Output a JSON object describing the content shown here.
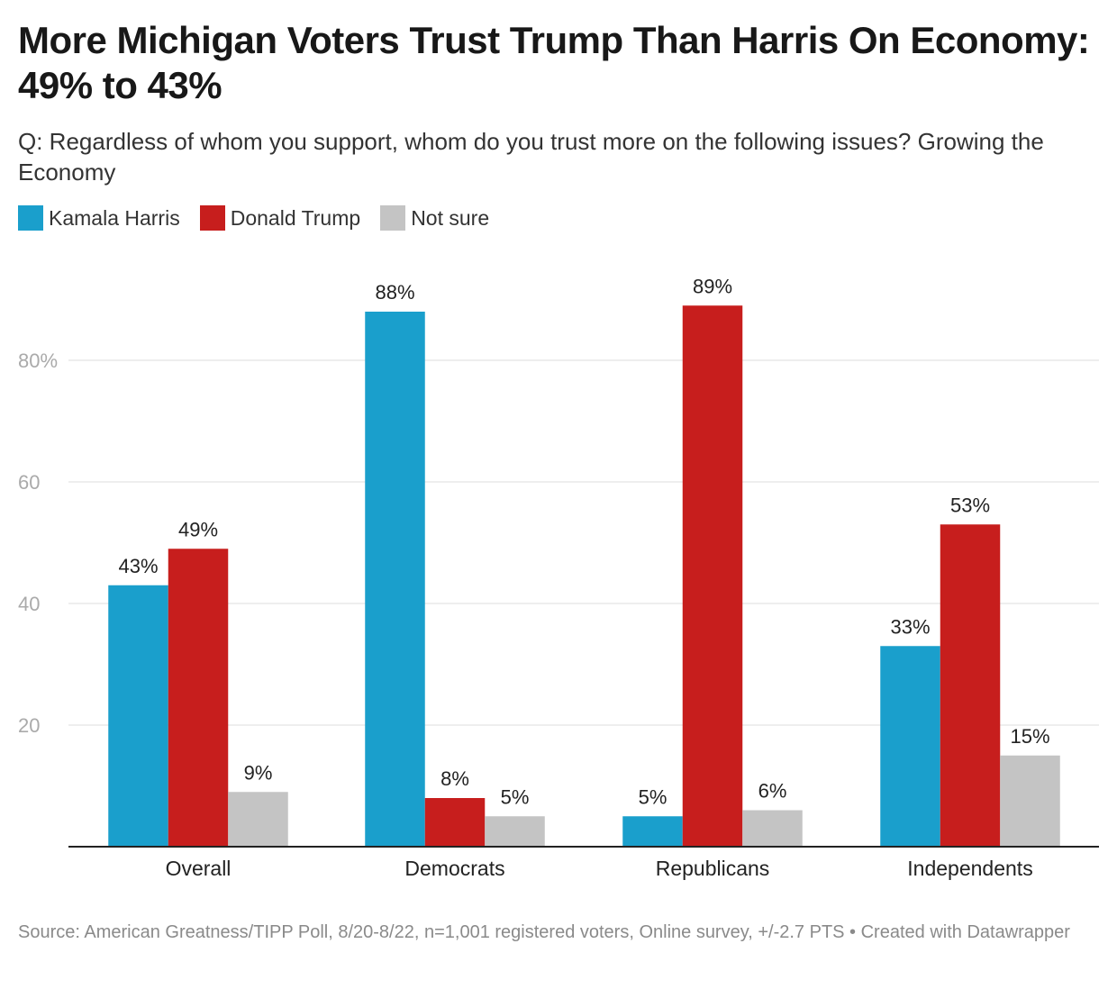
{
  "header": {
    "title": "More Michigan Voters Trust Trump Than Harris On Economy: 49% to 43%",
    "subtitle": "Q: Regardless of whom you support, whom do you trust more on the following issues? Growing the Economy"
  },
  "legend": [
    {
      "label": "Kamala Harris",
      "color": "#1a9fcc"
    },
    {
      "label": "Donald Trump",
      "color": "#c71e1d"
    },
    {
      "label": "Not sure",
      "color": "#c4c4c4"
    }
  ],
  "footer": {
    "source": "Source: American Greatness/TIPP Poll, 8/20-8/22, n=1,001 registered voters, Online survey, +/-2.7 PTS • Created with Datawrapper"
  },
  "chart_data": {
    "type": "bar",
    "categories": [
      "Overall",
      "Democrats",
      "Republicans",
      "Independents"
    ],
    "series": [
      {
        "name": "Kamala Harris",
        "color": "#1a9fcc",
        "values": [
          43,
          88,
          5,
          33
        ]
      },
      {
        "name": "Donald Trump",
        "color": "#c71e1d",
        "values": [
          49,
          8,
          89,
          53
        ]
      },
      {
        "name": "Not sure",
        "color": "#c4c4c4",
        "values": [
          9,
          5,
          6,
          15
        ]
      }
    ],
    "value_labels": [
      [
        "43%",
        "88%",
        "5%",
        "33%"
      ],
      [
        "49%",
        "8%",
        "89%",
        "53%"
      ],
      [
        "9%",
        "5%",
        "6%",
        "15%"
      ]
    ],
    "yticks": [
      20,
      40,
      60,
      80
    ],
    "ytick_labels": [
      "20",
      "40",
      "60",
      "80%"
    ],
    "ylim": [
      0,
      95
    ],
    "grid": true,
    "legend_position": "top-left"
  }
}
